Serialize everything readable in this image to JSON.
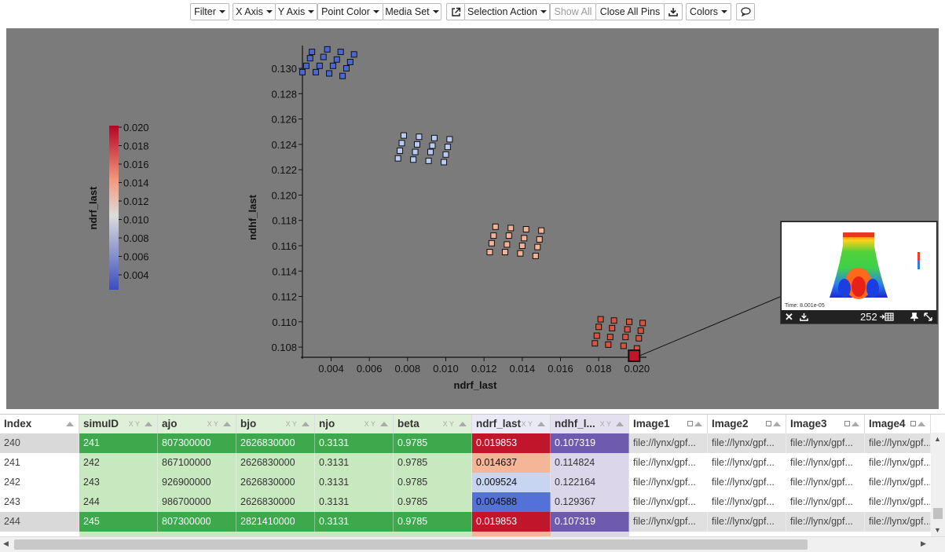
{
  "toolbar": {
    "filter": "Filter",
    "x_axis": "X Axis",
    "y_axis": "Y Axis",
    "point_color": "Point Color",
    "media_set": "Media Set",
    "selection_action": "Selection Action",
    "show_all": "Show All",
    "close_all_pins": "Close All Pins",
    "colors": "Colors"
  },
  "chart_data": {
    "type": "scatter",
    "xlabel": "ndrf_last",
    "ylabel": "ndhf_last",
    "xlim": [
      0.0025,
      0.0205
    ],
    "ylim": [
      0.1072,
      0.1318
    ],
    "xticks": [
      "0.004",
      "0.006",
      "0.008",
      "0.010",
      "0.012",
      "0.014",
      "0.016",
      "0.018",
      "0.020"
    ],
    "yticks": [
      "0.108",
      "0.110",
      "0.112",
      "0.114",
      "0.116",
      "0.118",
      "0.120",
      "0.122",
      "0.124",
      "0.126",
      "0.128",
      "0.130"
    ],
    "colorbar": {
      "label": "ndrf_last",
      "ticks": [
        "0.020",
        "0.018",
        "0.016",
        "0.014",
        "0.012",
        "0.010",
        "0.008",
        "0.006",
        "0.004"
      ],
      "colors": [
        "#b40426",
        "#f4987a",
        "#dddcdc",
        "#3b4cc0"
      ]
    },
    "clusters": [
      {
        "color": "#4a67d8",
        "points": [
          [
            0.003,
            0.1313
          ],
          [
            0.0038,
            0.1315
          ],
          [
            0.0045,
            0.1313
          ],
          [
            0.0052,
            0.1311
          ],
          [
            0.0029,
            0.1308
          ],
          [
            0.0036,
            0.1309
          ],
          [
            0.0043,
            0.1307
          ],
          [
            0.005,
            0.1305
          ],
          [
            0.0027,
            0.1302
          ],
          [
            0.0034,
            0.1302
          ],
          [
            0.0041,
            0.1302
          ],
          [
            0.0048,
            0.13
          ],
          [
            0.0025,
            0.1297
          ],
          [
            0.0032,
            0.1297
          ],
          [
            0.0039,
            0.1296
          ],
          [
            0.0046,
            0.1294
          ]
        ]
      },
      {
        "color": "#b7cbf5",
        "points": [
          [
            0.0078,
            0.1247
          ],
          [
            0.0086,
            0.1246
          ],
          [
            0.0094,
            0.1245
          ],
          [
            0.0102,
            0.1244
          ],
          [
            0.0077,
            0.1241
          ],
          [
            0.0085,
            0.124
          ],
          [
            0.0093,
            0.1239
          ],
          [
            0.0101,
            0.1238
          ],
          [
            0.0076,
            0.1235
          ],
          [
            0.0084,
            0.1234
          ],
          [
            0.0092,
            0.1234
          ],
          [
            0.01,
            0.1232
          ],
          [
            0.0075,
            0.1229
          ],
          [
            0.0083,
            0.1228
          ],
          [
            0.0091,
            0.1227
          ],
          [
            0.0099,
            0.1226
          ]
        ]
      },
      {
        "color": "#f5b294",
        "points": [
          [
            0.0126,
            0.1175
          ],
          [
            0.0134,
            0.1174
          ],
          [
            0.0142,
            0.1173
          ],
          [
            0.015,
            0.1172
          ],
          [
            0.0125,
            0.1168
          ],
          [
            0.0133,
            0.1168
          ],
          [
            0.0141,
            0.1166
          ],
          [
            0.0149,
            0.1165
          ],
          [
            0.0124,
            0.1162
          ],
          [
            0.0132,
            0.1161
          ],
          [
            0.014,
            0.116
          ],
          [
            0.0148,
            0.1159
          ],
          [
            0.0123,
            0.1155
          ],
          [
            0.0131,
            0.1155
          ],
          [
            0.0139,
            0.1154
          ],
          [
            0.0147,
            0.1152
          ]
        ]
      },
      {
        "color": "#d9533f",
        "points": [
          [
            0.0181,
            0.1102
          ],
          [
            0.0188,
            0.1101
          ],
          [
            0.0196,
            0.11
          ],
          [
            0.0203,
            0.1099
          ],
          [
            0.018,
            0.1096
          ],
          [
            0.0187,
            0.1095
          ],
          [
            0.0195,
            0.1094
          ],
          [
            0.0202,
            0.1093
          ],
          [
            0.0179,
            0.1089
          ],
          [
            0.0186,
            0.1088
          ],
          [
            0.0194,
            0.1088
          ],
          [
            0.0201,
            0.1087
          ],
          [
            0.0178,
            0.1083
          ],
          [
            0.0185,
            0.1082
          ],
          [
            0.0193,
            0.1081
          ],
          [
            0.02,
            0.1079
          ]
        ]
      }
    ],
    "selected_point": [
      0.019853,
      0.107319
    ]
  },
  "pin": {
    "time_text": "Time: 8.001e-05",
    "index": "252"
  },
  "table": {
    "columns": [
      {
        "name": "Index",
        "tag": ""
      },
      {
        "name": "simuID",
        "tag": "X Y"
      },
      {
        "name": "ajo",
        "tag": "X Y"
      },
      {
        "name": "bjo",
        "tag": "X Y"
      },
      {
        "name": "njo",
        "tag": "X Y"
      },
      {
        "name": "beta",
        "tag": "X Y"
      },
      {
        "name": "ndrf_last",
        "tag": "X Y"
      },
      {
        "name": "ndhf_l...",
        "tag": "X Y"
      },
      {
        "name": "Image1",
        "tag": ""
      },
      {
        "name": "Image2",
        "tag": ""
      },
      {
        "name": "Image3",
        "tag": ""
      },
      {
        "name": "Image4",
        "tag": ""
      }
    ],
    "rows": [
      {
        "cells": [
          "240",
          "241",
          "807300000",
          "2626830000",
          "0.3131",
          "0.9785",
          "0.019853",
          "0.107319",
          "file://lynx/gpf...",
          "file://lynx/gpf...",
          "file://lynx/gpf...",
          "file://lynx/gpf..."
        ],
        "selected": true,
        "ndrf_color": "#c0152b",
        "ndhf_color": "#6e5bb0"
      },
      {
        "cells": [
          "241",
          "242",
          "867100000",
          "2626830000",
          "0.3131",
          "0.9785",
          "0.014637",
          "0.114824",
          "file://lynx/gpf...",
          "file://lynx/gpf...",
          "file://lynx/gpf...",
          "file://lynx/gpf..."
        ],
        "selected": false,
        "ndrf_color": "#f5b597",
        "ndhf_color": "#dcd6eb"
      },
      {
        "cells": [
          "242",
          "243",
          "926900000",
          "2626830000",
          "0.3131",
          "0.9785",
          "0.009524",
          "0.122164",
          "file://lynx/gpf...",
          "file://lynx/gpf...",
          "file://lynx/gpf...",
          "file://lynx/gpf..."
        ],
        "selected": false,
        "ndrf_color": "#c7d5f2",
        "ndhf_color": "#dcd6eb"
      },
      {
        "cells": [
          "243",
          "244",
          "986700000",
          "2626830000",
          "0.3131",
          "0.9785",
          "0.004588",
          "0.129367",
          "file://lynx/gpf...",
          "file://lynx/gpf...",
          "file://lynx/gpf...",
          "file://lynx/gpf..."
        ],
        "selected": false,
        "ndrf_color": "#5470d9",
        "ndhf_color": "#dcd6eb"
      },
      {
        "cells": [
          "244",
          "245",
          "807300000",
          "2821410000",
          "0.3131",
          "0.9785",
          "0.019853",
          "0.107319",
          "file://lynx/gpf...",
          "file://lynx/gpf...",
          "file://lynx/gpf...",
          "file://lynx/gpf..."
        ],
        "selected": true,
        "ndrf_color": "#c0152b",
        "ndhf_color": "#6e5bb0"
      }
    ]
  }
}
